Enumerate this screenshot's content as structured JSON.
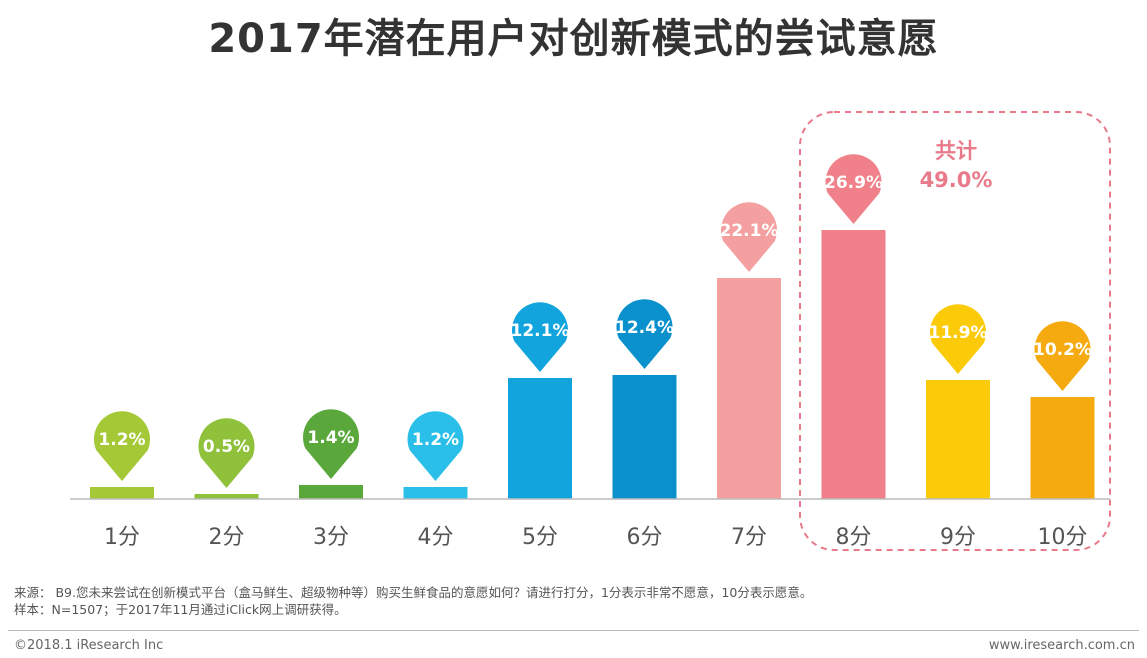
{
  "title": "2017年潜在用户对创新模式的尝试意愿",
  "chart_data": {
    "type": "bar",
    "categories": [
      "1分",
      "2分",
      "3分",
      "4分",
      "5分",
      "6分",
      "7分",
      "8分",
      "9分",
      "10分"
    ],
    "values": [
      1.2,
      0.5,
      1.4,
      1.2,
      12.1,
      12.4,
      22.1,
      26.9,
      11.9,
      10.2
    ],
    "value_labels": [
      "1.2%",
      "0.5%",
      "1.4%",
      "1.2%",
      "12.1%",
      "12.4%",
      "22.1%",
      "26.9%",
      "11.9%",
      "10.2%"
    ],
    "colors": [
      "#a5c936",
      "#8fc13a",
      "#5aa83c",
      "#29bfe8",
      "#12a4dd",
      "#0a90cc",
      "#f4a0a0",
      "#f08089",
      "#fbcb0a",
      "#f5aa10"
    ],
    "ylim": [
      0,
      30
    ],
    "highlight": {
      "categories": [
        "8分",
        "9分",
        "10分"
      ],
      "label_line1": "共计",
      "label_line2": "49.0%",
      "color": "#e87a8a"
    }
  },
  "source_line1": "来源：  B9.您未来尝试在创新模式平台（盒马鲜生、超级物种等）购买生鲜食品的意愿如何？请进行打分，1分表示非常不愿意，10分表示愿意。",
  "source_line2": "样本：N=1507；于2017年11月通过iClick网上调研获得。",
  "copyright": "©2018.1 iResearch Inc",
  "website": "www.iresearch.com.cn"
}
